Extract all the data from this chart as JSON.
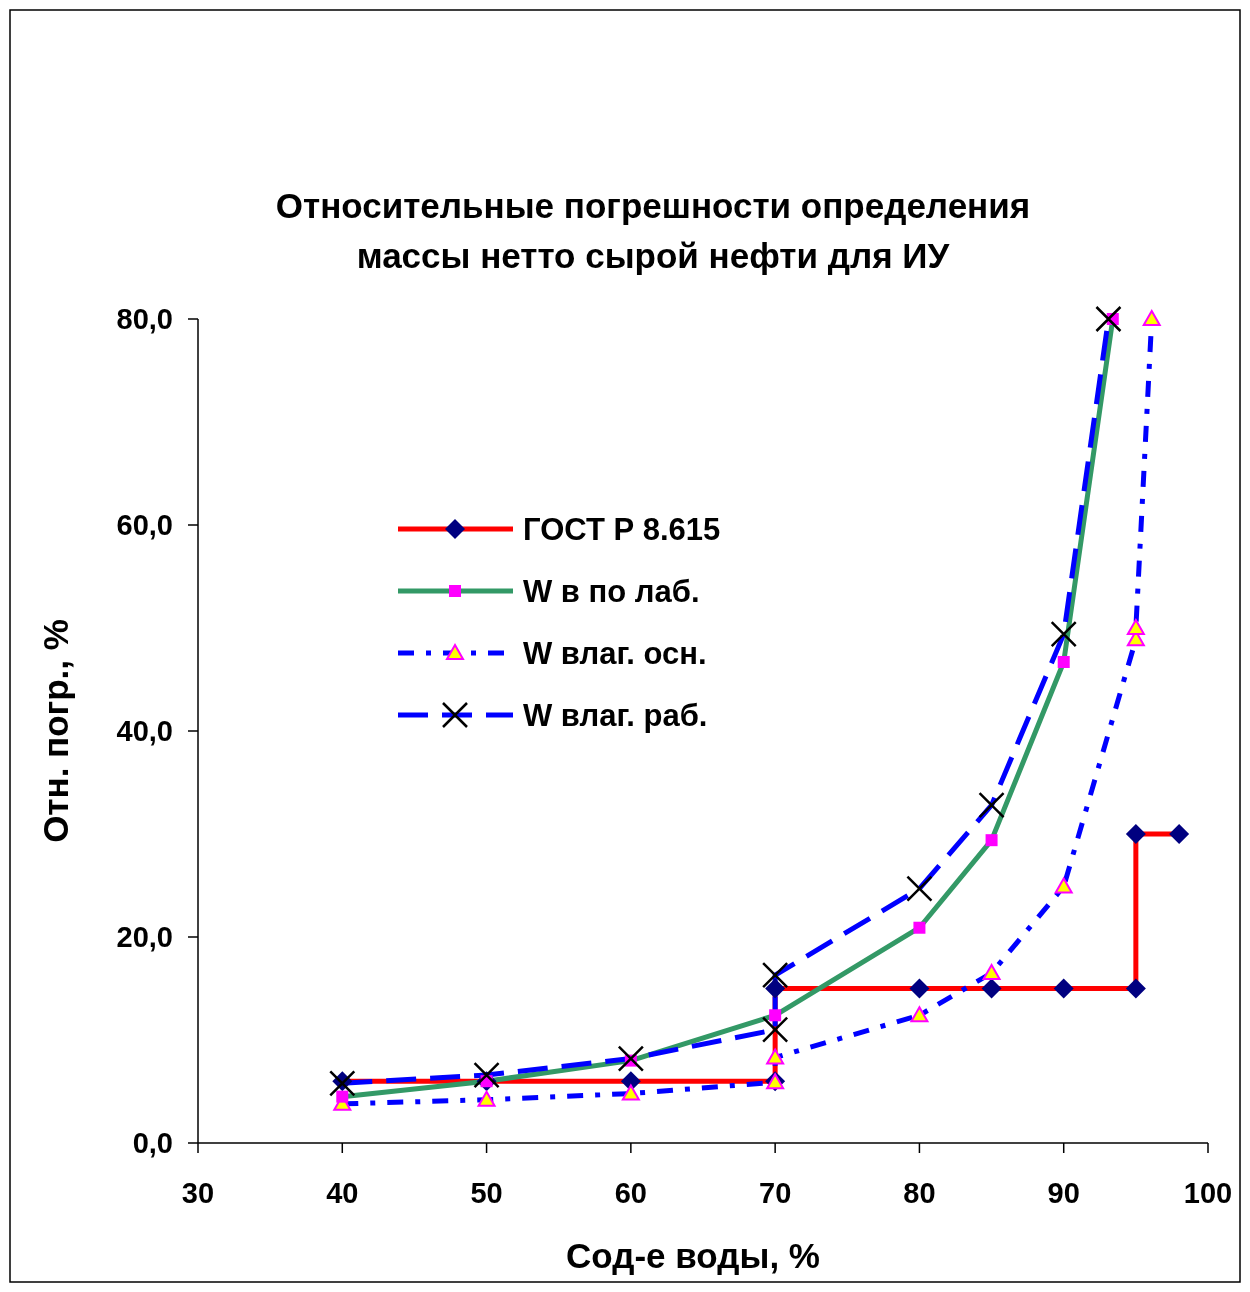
{
  "chart_data": {
    "type": "line",
    "title": "Относительные погрешности определения\nмассы нетто сырой нефти для ИУ",
    "xlabel": "Сод-е воды, %",
    "ylabel": "Отн. погр., %",
    "xlim": [
      30,
      100
    ],
    "xticks": [
      30,
      40,
      50,
      60,
      70,
      80,
      90,
      100
    ],
    "ylim": [
      0,
      80
    ],
    "yticks": [
      {
        "value": 0,
        "label": "0,0"
      },
      {
        "value": 20,
        "label": "20,0"
      },
      {
        "value": 40,
        "label": "40,0"
      },
      {
        "value": 60,
        "label": "60,0"
      },
      {
        "value": 80,
        "label": "80,0"
      }
    ],
    "grid": false,
    "legend": "top left",
    "series": [
      {
        "name": "ГОСТ Р 8.615",
        "color": "#ff0000",
        "marker": "diamond",
        "line_style": "solid",
        "x": [
          40,
          50,
          60,
          70,
          70,
          80,
          85,
          90,
          95,
          95,
          98
        ],
        "values": [
          6,
          6,
          6,
          6,
          15,
          15,
          15,
          15,
          15,
          30,
          30
        ]
      },
      {
        "name": "W в по лаб.",
        "color": "#339966",
        "marker": "square",
        "line_style": "solid",
        "x": [
          40,
          50,
          60,
          70,
          80,
          85,
          90,
          93.4
        ],
        "values": [
          4.5,
          6,
          8,
          12.4,
          20.9,
          29.4,
          46.7,
          80
        ]
      },
      {
        "name": "W влаг. осн.",
        "color": "#0000ff",
        "marker": "triangle",
        "line_style": "dotted",
        "x": [
          40,
          50,
          60,
          70,
          70,
          80,
          85,
          90,
          95,
          95,
          96.1
        ],
        "values": [
          3.8,
          4.2,
          4.8,
          5.9,
          8.3,
          12.4,
          16.5,
          24.9,
          48.9,
          50,
          80
        ]
      },
      {
        "name": "W влаг. раб.",
        "color": "#0000ff",
        "marker": "cross",
        "line_style": "dashed",
        "x": [
          40,
          50,
          60,
          70,
          70,
          80,
          85,
          90,
          93.1
        ],
        "values": [
          5.8,
          6.6,
          8.2,
          11,
          16.3,
          24.7,
          32.8,
          49.4,
          80
        ]
      }
    ]
  }
}
